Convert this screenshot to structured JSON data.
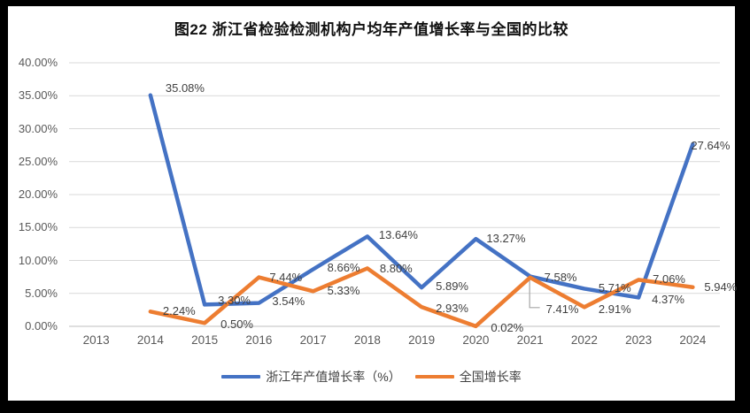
{
  "title": "图22 浙江省检验检测机构户均年产值增长率与全国的比较",
  "chart_data": {
    "type": "line",
    "title": "图22 浙江省检验检测机构户均年产值增长率与全国的比较",
    "categories": [
      "2013",
      "2014",
      "2015",
      "2016",
      "2017",
      "2018",
      "2019",
      "2020",
      "2021",
      "2022",
      "2023",
      "2024"
    ],
    "series": [
      {
        "name": "浙江年产值增长率（%）",
        "color": "#4472C4",
        "values": [
          null,
          35.08,
          3.3,
          3.54,
          8.66,
          13.64,
          5.89,
          13.27,
          7.58,
          5.71,
          4.37,
          27.64
        ],
        "labels": [
          null,
          "35.08%",
          "3.30%",
          "3.54%",
          "8.66%",
          "13.64%",
          "5.89%",
          "13.27%",
          "7.58%",
          "5.71%",
          "4.37%",
          "27.64%"
        ]
      },
      {
        "name": "全国增长率",
        "color": "#ED7D31",
        "values": [
          null,
          2.24,
          0.5,
          7.44,
          5.33,
          8.8,
          2.93,
          0.02,
          7.41,
          2.91,
          7.06,
          5.94
        ],
        "labels": [
          null,
          "2.24%",
          "0.50%",
          "7.44%",
          "5.33%",
          "8.80%",
          "2.93%",
          "0.02%",
          "7.41%",
          "2.91%",
          "7.06%",
          "5.94%"
        ]
      }
    ],
    "ylim": [
      0,
      40
    ],
    "y_ticks": [
      "0.00%",
      "5.00%",
      "10.00%",
      "15.00%",
      "20.00%",
      "25.00%",
      "30.00%",
      "35.00%",
      "40.00%"
    ],
    "xlabel": "",
    "ylabel": "",
    "grid": true,
    "legend_position": "bottom",
    "annotation": {
      "callout_label": "7.41%",
      "callout_series": "全国增长率",
      "callout_year": "2021"
    },
    "colors": {
      "gridline": "#D9D9D9",
      "axis_line": "#BFBFBF",
      "tick_text": "#595959",
      "data_label_text": "#404040",
      "leader_line": "#A6A6A6"
    }
  }
}
